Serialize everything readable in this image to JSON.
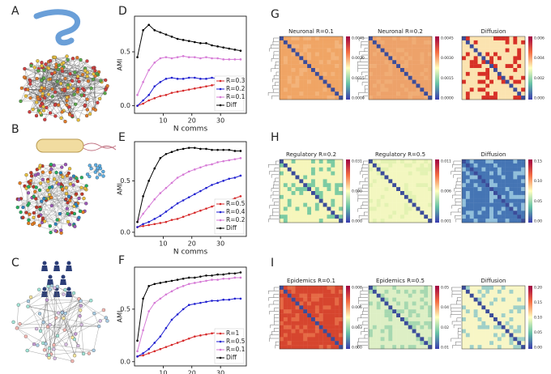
{
  "panel_labels": [
    "A",
    "B",
    "C",
    "D",
    "E",
    "F",
    "G",
    "H",
    "I"
  ],
  "chart_data": [
    {
      "type": "line",
      "x_label": "N comms",
      "y_label": "AMI",
      "x": [
        1,
        3,
        5,
        7,
        9,
        11,
        13,
        15,
        17,
        19,
        21,
        23,
        25,
        27,
        29,
        31,
        33,
        35,
        37
      ],
      "xlim": [
        0,
        39
      ],
      "ylim": [
        -0.07,
        0.83
      ],
      "xticks": [
        10,
        20,
        30
      ],
      "yticks": [
        {
          "value": 0,
          "label": "0.0"
        },
        {
          "value": 0.5,
          "label": "0.5"
        }
      ],
      "legend": "lower right",
      "series": [
        {
          "name": "R=0.3",
          "color": "#d62728",
          "values": [
            0.0,
            0.02,
            0.05,
            0.07,
            0.09,
            0.1,
            0.12,
            0.13,
            0.14,
            0.15,
            0.16,
            0.17,
            0.18,
            0.19,
            0.2,
            0.21,
            0.22,
            0.23,
            0.24
          ]
        },
        {
          "name": "R=0.2",
          "color": "#1f1fd0",
          "values": [
            0.0,
            0.05,
            0.1,
            0.18,
            0.22,
            0.25,
            0.26,
            0.25,
            0.25,
            0.26,
            0.26,
            0.25,
            0.25,
            0.26,
            0.25,
            0.25,
            0.25,
            0.25,
            0.25
          ]
        },
        {
          "name": "R=0.1",
          "color": "#d67ad6",
          "values": [
            0.1,
            0.22,
            0.33,
            0.4,
            0.44,
            0.45,
            0.44,
            0.45,
            0.46,
            0.45,
            0.45,
            0.44,
            0.45,
            0.44,
            0.44,
            0.43,
            0.43,
            0.43,
            0.43
          ]
        },
        {
          "name": "Diff",
          "color": "#000000",
          "values": [
            0.45,
            0.7,
            0.75,
            0.7,
            0.68,
            0.66,
            0.64,
            0.62,
            0.61,
            0.6,
            0.59,
            0.58,
            0.58,
            0.56,
            0.55,
            0.54,
            0.53,
            0.52,
            0.51
          ]
        }
      ]
    },
    {
      "type": "line",
      "x_label": "N comms",
      "y_label": "AMI",
      "x": [
        1,
        3,
        5,
        7,
        9,
        11,
        13,
        15,
        17,
        19,
        21,
        23,
        25,
        27,
        29,
        31,
        33,
        35,
        37
      ],
      "xlim": [
        0,
        39
      ],
      "ylim": [
        -0.04,
        0.88
      ],
      "xticks": [
        10,
        20,
        30
      ],
      "yticks": [
        {
          "value": 0,
          "label": "0.0"
        },
        {
          "value": 0.5,
          "label": "0.5"
        }
      ],
      "legend": "lower right",
      "series": [
        {
          "name": "R=0.5",
          "color": "#d62728",
          "values": [
            0.05,
            0.06,
            0.07,
            0.08,
            0.09,
            0.1,
            0.12,
            0.13,
            0.15,
            0.17,
            0.19,
            0.21,
            0.23,
            0.25,
            0.27,
            0.29,
            0.31,
            0.33,
            0.35
          ]
        },
        {
          "name": "R=0.4",
          "color": "#1f1fd0",
          "values": [
            0.05,
            0.08,
            0.1,
            0.13,
            0.16,
            0.2,
            0.24,
            0.28,
            0.31,
            0.34,
            0.37,
            0.4,
            0.43,
            0.46,
            0.48,
            0.5,
            0.52,
            0.53,
            0.55
          ]
        },
        {
          "name": "R=0.2",
          "color": "#d67ad6",
          "values": [
            0.1,
            0.18,
            0.25,
            0.32,
            0.38,
            0.43,
            0.48,
            0.53,
            0.56,
            0.59,
            0.61,
            0.63,
            0.65,
            0.66,
            0.68,
            0.69,
            0.7,
            0.71,
            0.72
          ]
        },
        {
          "name": "Diff",
          "color": "#000000",
          "values": [
            0.1,
            0.35,
            0.5,
            0.62,
            0.72,
            0.76,
            0.78,
            0.8,
            0.81,
            0.82,
            0.82,
            0.81,
            0.81,
            0.8,
            0.8,
            0.8,
            0.8,
            0.79,
            0.79
          ]
        }
      ]
    },
    {
      "type": "line",
      "x_label": "N comms",
      "y_label": "AMI",
      "x": [
        1,
        3,
        5,
        7,
        9,
        11,
        13,
        15,
        17,
        19,
        21,
        23,
        25,
        27,
        29,
        31,
        33,
        35,
        37
      ],
      "xlim": [
        0,
        39
      ],
      "ylim": [
        -0.04,
        0.9
      ],
      "xticks": [
        10,
        20,
        30
      ],
      "yticks": [
        {
          "value": 0,
          "label": "0.0"
        },
        {
          "value": 0.5,
          "label": "0.5"
        }
      ],
      "legend": "lower right",
      "series": [
        {
          "name": "R=1",
          "color": "#d62728",
          "values": [
            0.05,
            0.06,
            0.08,
            0.1,
            0.12,
            0.14,
            0.16,
            0.18,
            0.2,
            0.22,
            0.24,
            0.25,
            0.26,
            0.27,
            0.28,
            0.28,
            0.29,
            0.29,
            0.3
          ]
        },
        {
          "name": "R=0.5",
          "color": "#1f1fd0",
          "values": [
            0.05,
            0.08,
            0.12,
            0.18,
            0.24,
            0.32,
            0.4,
            0.45,
            0.5,
            0.54,
            0.55,
            0.56,
            0.57,
            0.58,
            0.58,
            0.59,
            0.59,
            0.6,
            0.6
          ]
        },
        {
          "name": "R=0.1",
          "color": "#d67ad6",
          "values": [
            0.1,
            0.3,
            0.48,
            0.56,
            0.6,
            0.64,
            0.67,
            0.7,
            0.72,
            0.74,
            0.75,
            0.76,
            0.77,
            0.78,
            0.78,
            0.79,
            0.79,
            0.8,
            0.8
          ]
        },
        {
          "name": "Diff",
          "color": "#000000",
          "values": [
            0.2,
            0.6,
            0.72,
            0.74,
            0.75,
            0.76,
            0.77,
            0.78,
            0.79,
            0.8,
            0.8,
            0.81,
            0.82,
            0.82,
            0.83,
            0.83,
            0.84,
            0.84,
            0.85
          ]
        }
      ]
    }
  ],
  "heatmaps": [
    [
      {
        "title": "Neuronal R=0.1",
        "colorbar_ticks": [
          "0.0045",
          "0.0030",
          "0.0015",
          "0.0000"
        ]
      },
      {
        "title": "Neuronal R=0.2",
        "colorbar_ticks": [
          "0.0045",
          "0.0030",
          "0.0015",
          "0.0000"
        ]
      },
      {
        "title": "Diffusion",
        "colorbar_ticks": [
          "0.006",
          "0.004",
          "0.002",
          "0.000"
        ]
      }
    ],
    [
      {
        "title": "Regulatory R=0.2",
        "colorbar_ticks": [
          "0.031",
          "0.000",
          "0.000"
        ]
      },
      {
        "title": "Regulatory R=0.5",
        "colorbar_ticks": [
          "0.011",
          "0.006",
          "0.001"
        ]
      },
      {
        "title": "Diffusion",
        "colorbar_ticks": [
          "0.15",
          "0.10",
          "0.05",
          "0.00"
        ]
      }
    ],
    [
      {
        "title": "Epidemics R=0.1",
        "colorbar_ticks": [
          "0.008",
          "0.006",
          "0.003",
          "0.000"
        ]
      },
      {
        "title": "Epidemics R=0.5",
        "colorbar_ticks": [
          "0.05",
          "0.04",
          "0.02",
          "0.01"
        ]
      },
      {
        "title": "Diffusion",
        "colorbar_ticks": [
          "0.20",
          "0.15",
          "0.10",
          "0.05",
          "0.00"
        ]
      }
    ]
  ]
}
